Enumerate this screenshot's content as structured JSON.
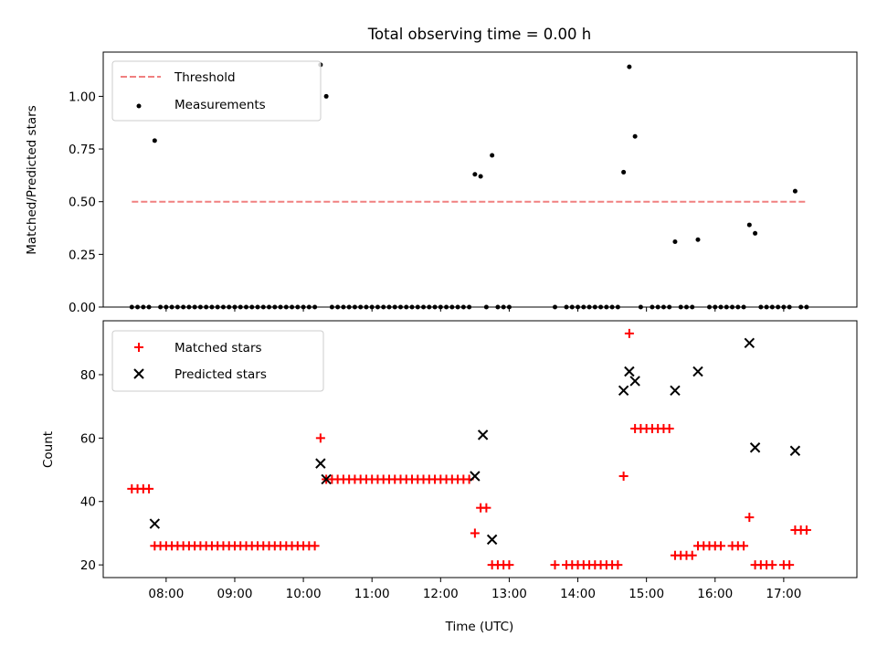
{
  "chart_data": {
    "title": "Total observing time = 0.00 h",
    "x_axis": {
      "label": "Time (UTC)",
      "unit": "hours UTC",
      "range": [
        "07:05",
        "18:04"
      ],
      "ticks": [
        "08:00",
        "09:00",
        "10:00",
        "11:00",
        "12:00",
        "13:00",
        "14:00",
        "15:00",
        "16:00",
        "17:00"
      ]
    },
    "panels": [
      {
        "type": "scatter",
        "ylabel": "Matched/Predicted stars",
        "ylim": [
          0,
          1.21
        ],
        "yticks": [
          "0.00",
          "0.25",
          "0.50",
          "0.75",
          "1.00"
        ],
        "legend_position": "upper-left",
        "threshold": {
          "name": "Threshold",
          "value": 0.5,
          "x_range": [
            "07:30",
            "17:20"
          ],
          "color": "#f08080",
          "style": "dashed"
        },
        "series": [
          {
            "name": "Measurements",
            "color": "#000000",
            "marker": "dot",
            "points": [
              [
                "07:30",
                0
              ],
              [
                "07:35",
                0
              ],
              [
                "07:40",
                0
              ],
              [
                "07:45",
                0
              ],
              [
                "07:50",
                0.79
              ],
              [
                "07:55",
                0
              ],
              [
                "08:00",
                0
              ],
              [
                "08:05",
                0
              ],
              [
                "08:10",
                0
              ],
              [
                "08:15",
                0
              ],
              [
                "08:20",
                0
              ],
              [
                "08:25",
                0
              ],
              [
                "08:30",
                0
              ],
              [
                "08:35",
                0
              ],
              [
                "08:40",
                0
              ],
              [
                "08:45",
                0
              ],
              [
                "08:50",
                0
              ],
              [
                "08:55",
                0
              ],
              [
                "09:00",
                0
              ],
              [
                "09:05",
                0
              ],
              [
                "09:10",
                0
              ],
              [
                "09:15",
                0
              ],
              [
                "09:20",
                0
              ],
              [
                "09:25",
                0
              ],
              [
                "09:30",
                0
              ],
              [
                "09:35",
                0
              ],
              [
                "09:40",
                0
              ],
              [
                "09:45",
                0
              ],
              [
                "09:50",
                0
              ],
              [
                "09:55",
                0
              ],
              [
                "10:00",
                0
              ],
              [
                "10:05",
                0
              ],
              [
                "10:10",
                0
              ],
              [
                "10:15",
                1.15
              ],
              [
                "10:20",
                1.0
              ],
              [
                "10:25",
                0
              ],
              [
                "10:30",
                0
              ],
              [
                "10:35",
                0
              ],
              [
                "10:40",
                0
              ],
              [
                "10:45",
                0
              ],
              [
                "10:50",
                0
              ],
              [
                "10:55",
                0
              ],
              [
                "11:00",
                0
              ],
              [
                "11:05",
                0
              ],
              [
                "11:10",
                0
              ],
              [
                "11:15",
                0
              ],
              [
                "11:20",
                0
              ],
              [
                "11:25",
                0
              ],
              [
                "11:30",
                0
              ],
              [
                "11:35",
                0
              ],
              [
                "11:40",
                0
              ],
              [
                "11:45",
                0
              ],
              [
                "11:50",
                0
              ],
              [
                "11:55",
                0
              ],
              [
                "12:00",
                0
              ],
              [
                "12:05",
                0
              ],
              [
                "12:10",
                0
              ],
              [
                "12:15",
                0
              ],
              [
                "12:20",
                0
              ],
              [
                "12:25",
                0
              ],
              [
                "12:30",
                0.63
              ],
              [
                "12:35",
                0.62
              ],
              [
                "12:40",
                0
              ],
              [
                "12:45",
                0.72
              ],
              [
                "12:50",
                0
              ],
              [
                "12:55",
                0
              ],
              [
                "13:00",
                0
              ],
              [
                "13:40",
                0
              ],
              [
                "13:50",
                0
              ],
              [
                "13:55",
                0
              ],
              [
                "14:00",
                0
              ],
              [
                "14:05",
                0
              ],
              [
                "14:10",
                0
              ],
              [
                "14:15",
                0
              ],
              [
                "14:20",
                0
              ],
              [
                "14:25",
                0
              ],
              [
                "14:30",
                0
              ],
              [
                "14:35",
                0
              ],
              [
                "14:40",
                0.64
              ],
              [
                "14:45",
                1.14
              ],
              [
                "14:50",
                0.81
              ],
              [
                "14:55",
                0
              ],
              [
                "15:05",
                0
              ],
              [
                "15:10",
                0
              ],
              [
                "15:15",
                0
              ],
              [
                "15:20",
                0
              ],
              [
                "15:25",
                0.31
              ],
              [
                "15:30",
                0
              ],
              [
                "15:35",
                0
              ],
              [
                "15:40",
                0
              ],
              [
                "15:45",
                0.32
              ],
              [
                "15:55",
                0
              ],
              [
                "16:00",
                0
              ],
              [
                "16:05",
                0
              ],
              [
                "16:10",
                0
              ],
              [
                "16:15",
                0
              ],
              [
                "16:20",
                0
              ],
              [
                "16:25",
                0
              ],
              [
                "16:30",
                0.39
              ],
              [
                "16:35",
                0.35
              ],
              [
                "16:40",
                0
              ],
              [
                "16:45",
                0
              ],
              [
                "16:50",
                0
              ],
              [
                "16:55",
                0
              ],
              [
                "17:00",
                0
              ],
              [
                "17:05",
                0
              ],
              [
                "17:10",
                0.55
              ],
              [
                "17:15",
                0
              ],
              [
                "17:20",
                0
              ]
            ]
          }
        ]
      },
      {
        "type": "scatter",
        "ylabel": "Count",
        "ylim": [
          16,
          97
        ],
        "yticks": [
          "20",
          "40",
          "60",
          "80"
        ],
        "legend_position": "upper-left",
        "series": [
          {
            "name": "Matched stars",
            "color": "#ff0000",
            "marker": "plus",
            "points": [
              [
                "07:30",
                44
              ],
              [
                "07:35",
                44
              ],
              [
                "07:40",
                44
              ],
              [
                "07:45",
                44
              ],
              [
                "07:50",
                26
              ],
              [
                "07:55",
                26
              ],
              [
                "08:00",
                26
              ],
              [
                "08:05",
                26
              ],
              [
                "08:10",
                26
              ],
              [
                "08:15",
                26
              ],
              [
                "08:20",
                26
              ],
              [
                "08:25",
                26
              ],
              [
                "08:30",
                26
              ],
              [
                "08:35",
                26
              ],
              [
                "08:40",
                26
              ],
              [
                "08:45",
                26
              ],
              [
                "08:50",
                26
              ],
              [
                "08:55",
                26
              ],
              [
                "09:00",
                26
              ],
              [
                "09:05",
                26
              ],
              [
                "09:10",
                26
              ],
              [
                "09:15",
                26
              ],
              [
                "09:20",
                26
              ],
              [
                "09:25",
                26
              ],
              [
                "09:30",
                26
              ],
              [
                "09:35",
                26
              ],
              [
                "09:40",
                26
              ],
              [
                "09:45",
                26
              ],
              [
                "09:50",
                26
              ],
              [
                "09:55",
                26
              ],
              [
                "10:00",
                26
              ],
              [
                "10:05",
                26
              ],
              [
                "10:10",
                26
              ],
              [
                "10:15",
                60
              ],
              [
                "10:20",
                47
              ],
              [
                "10:25",
                47
              ],
              [
                "10:30",
                47
              ],
              [
                "10:35",
                47
              ],
              [
                "10:40",
                47
              ],
              [
                "10:45",
                47
              ],
              [
                "10:50",
                47
              ],
              [
                "10:55",
                47
              ],
              [
                "11:00",
                47
              ],
              [
                "11:05",
                47
              ],
              [
                "11:10",
                47
              ],
              [
                "11:15",
                47
              ],
              [
                "11:20",
                47
              ],
              [
                "11:25",
                47
              ],
              [
                "11:30",
                47
              ],
              [
                "11:35",
                47
              ],
              [
                "11:40",
                47
              ],
              [
                "11:45",
                47
              ],
              [
                "11:50",
                47
              ],
              [
                "11:55",
                47
              ],
              [
                "12:00",
                47
              ],
              [
                "12:05",
                47
              ],
              [
                "12:10",
                47
              ],
              [
                "12:15",
                47
              ],
              [
                "12:20",
                47
              ],
              [
                "12:25",
                47
              ],
              [
                "12:30",
                30
              ],
              [
                "12:35",
                38
              ],
              [
                "12:40",
                38
              ],
              [
                "12:45",
                20
              ],
              [
                "12:50",
                20
              ],
              [
                "12:55",
                20
              ],
              [
                "13:00",
                20
              ],
              [
                "13:40",
                20
              ],
              [
                "13:50",
                20
              ],
              [
                "13:55",
                20
              ],
              [
                "14:00",
                20
              ],
              [
                "14:05",
                20
              ],
              [
                "14:10",
                20
              ],
              [
                "14:15",
                20
              ],
              [
                "14:20",
                20
              ],
              [
                "14:25",
                20
              ],
              [
                "14:30",
                20
              ],
              [
                "14:35",
                20
              ],
              [
                "14:40",
                48
              ],
              [
                "14:45",
                93
              ],
              [
                "14:50",
                63
              ],
              [
                "14:55",
                63
              ],
              [
                "15:00",
                63
              ],
              [
                "15:05",
                63
              ],
              [
                "15:10",
                63
              ],
              [
                "15:15",
                63
              ],
              [
                "15:20",
                63
              ],
              [
                "15:25",
                23
              ],
              [
                "15:30",
                23
              ],
              [
                "15:35",
                23
              ],
              [
                "15:40",
                23
              ],
              [
                "15:45",
                26
              ],
              [
                "15:50",
                26
              ],
              [
                "15:55",
                26
              ],
              [
                "16:00",
                26
              ],
              [
                "16:05",
                26
              ],
              [
                "16:15",
                26
              ],
              [
                "16:20",
                26
              ],
              [
                "16:25",
                26
              ],
              [
                "16:30",
                35
              ],
              [
                "16:35",
                20
              ],
              [
                "16:40",
                20
              ],
              [
                "16:45",
                20
              ],
              [
                "16:50",
                20
              ],
              [
                "17:00",
                20
              ],
              [
                "17:05",
                20
              ],
              [
                "17:10",
                31
              ],
              [
                "17:15",
                31
              ],
              [
                "17:20",
                31
              ]
            ]
          },
          {
            "name": "Predicted stars",
            "color": "#000000",
            "marker": "x",
            "points": [
              [
                "07:50",
                33
              ],
              [
                "10:15",
                52
              ],
              [
                "10:20",
                47
              ],
              [
                "12:30",
                48
              ],
              [
                "12:37",
                61
              ],
              [
                "12:45",
                28
              ],
              [
                "14:40",
                75
              ],
              [
                "14:45",
                81
              ],
              [
                "14:50",
                78
              ],
              [
                "15:25",
                75
              ],
              [
                "15:45",
                81
              ],
              [
                "16:30",
                90
              ],
              [
                "16:35",
                57
              ],
              [
                "17:10",
                56
              ]
            ]
          }
        ]
      }
    ]
  }
}
